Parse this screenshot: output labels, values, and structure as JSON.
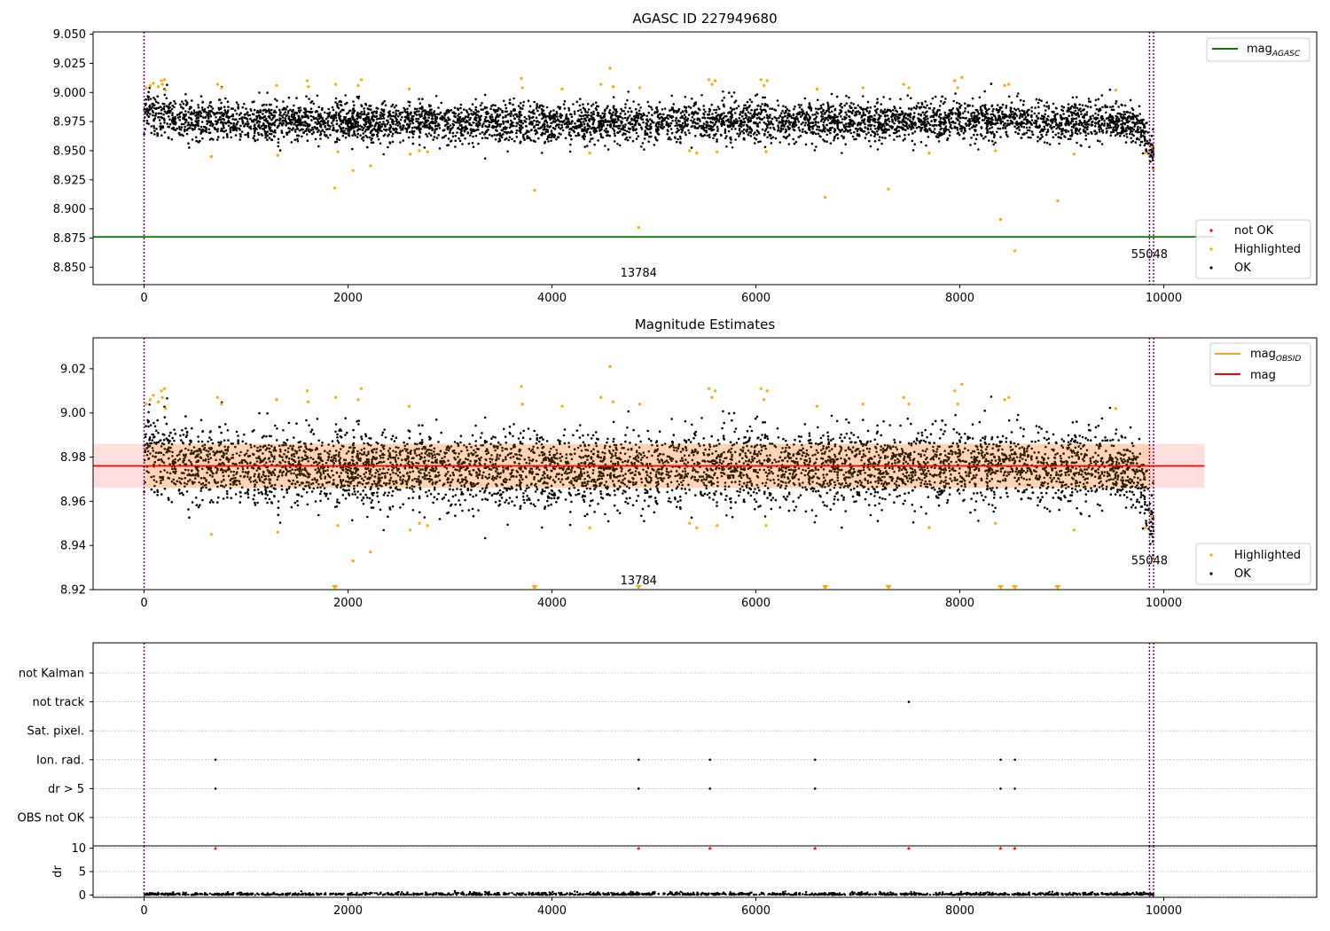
{
  "chart_data": [
    {
      "type": "scatter",
      "title": "AGASC ID 227949680",
      "xlim": [
        -500,
        11500
      ],
      "ylim": [
        8.835,
        9.052
      ],
      "xticks": [
        0,
        2000,
        4000,
        6000,
        8000,
        10000
      ],
      "yticks": [
        "8.850",
        "8.875",
        "8.900",
        "8.925",
        "8.950",
        "8.975",
        "9.000",
        "9.025",
        "9.050"
      ],
      "yticks_values": [
        8.85,
        8.875,
        8.9,
        8.925,
        8.95,
        8.975,
        9.0,
        9.025,
        9.05
      ],
      "vlines": [
        0,
        9860,
        9900
      ],
      "mag_agasc": 8.876,
      "mag_agasc_xrange": [
        -500,
        10500
      ],
      "annotations": [
        {
          "text": "13784",
          "x": 4850,
          "y": 8.842
        },
        {
          "text": "55048",
          "x": 9860,
          "y": 8.858
        }
      ],
      "legend_top": {
        "location": "top-right",
        "entries": [
          {
            "label": "mag",
            "sub": "AGASC",
            "color": "#008000"
          }
        ]
      },
      "legend_bottom": {
        "location": "bottom-right",
        "entries": [
          {
            "label": "not OK",
            "color": "#ff0000"
          },
          {
            "label": "Highlighted",
            "color": "#ffa500"
          },
          {
            "label": "OK",
            "color": "#000000"
          }
        ]
      },
      "ok_trend": [
        [
          0,
          8.985
        ],
        [
          300,
          8.978
        ],
        [
          1000,
          8.976
        ],
        [
          2000,
          8.975
        ],
        [
          4000,
          8.974
        ],
        [
          6000,
          8.975
        ],
        [
          8000,
          8.976
        ],
        [
          9500,
          8.975
        ],
        [
          9800,
          8.968
        ],
        [
          9900,
          8.95
        ]
      ],
      "ok_spread": 0.011,
      "highlighted_points": [
        [
          20,
          9.004
        ],
        [
          60,
          9.006
        ],
        [
          90,
          9.008
        ],
        [
          140,
          9.005
        ],
        [
          170,
          9.01
        ],
        [
          200,
          9.011
        ],
        [
          180,
          9.007
        ],
        [
          210,
          9.002
        ],
        [
          660,
          8.945
        ],
        [
          720,
          9.007
        ],
        [
          760,
          9.004
        ],
        [
          1300,
          9.006
        ],
        [
          1310,
          8.946
        ],
        [
          1600,
          9.01
        ],
        [
          1610,
          9.005
        ],
        [
          1870,
          8.918
        ],
        [
          1880,
          9.007
        ],
        [
          1900,
          8.949
        ],
        [
          2050,
          8.933
        ],
        [
          2100,
          9.006
        ],
        [
          2130,
          9.011
        ],
        [
          2220,
          8.937
        ],
        [
          2600,
          9.003
        ],
        [
          2610,
          8.947
        ],
        [
          2700,
          8.95
        ],
        [
          2780,
          8.949
        ],
        [
          3700,
          9.012
        ],
        [
          3710,
          9.004
        ],
        [
          3830,
          8.916
        ],
        [
          4100,
          9.003
        ],
        [
          4370,
          8.948
        ],
        [
          4480,
          9.007
        ],
        [
          4570,
          9.021
        ],
        [
          4600,
          9.005
        ],
        [
          4850,
          8.884
        ],
        [
          4860,
          9.004
        ],
        [
          5350,
          8.95
        ],
        [
          5420,
          8.948
        ],
        [
          5540,
          9.011
        ],
        [
          5570,
          9.007
        ],
        [
          5600,
          9.01
        ],
        [
          5620,
          8.949
        ],
        [
          6050,
          9.011
        ],
        [
          6080,
          9.006
        ],
        [
          6100,
          8.949
        ],
        [
          6110,
          9.01
        ],
        [
          6600,
          9.003
        ],
        [
          6680,
          8.91
        ],
        [
          7050,
          9.004
        ],
        [
          7300,
          8.917
        ],
        [
          7450,
          9.007
        ],
        [
          7500,
          9.004
        ],
        [
          7700,
          8.948
        ],
        [
          7950,
          9.01
        ],
        [
          7980,
          9.004
        ],
        [
          8020,
          9.013
        ],
        [
          8350,
          8.95
        ],
        [
          8400,
          8.891
        ],
        [
          8440,
          9.006
        ],
        [
          8480,
          9.007
        ],
        [
          8540,
          8.864
        ],
        [
          8960,
          8.907
        ],
        [
          9120,
          8.947
        ],
        [
          9530,
          9.002
        ],
        [
          9820,
          8.948
        ],
        [
          9880,
          8.953
        ],
        [
          9900,
          8.934
        ]
      ],
      "not_ok_points": [
        [
          10400,
          8.876
        ]
      ]
    },
    {
      "type": "scatter",
      "title": "Magnitude Estimates",
      "xlim": [
        -500,
        11500
      ],
      "ylim": [
        8.92,
        9.034
      ],
      "xticks": [
        0,
        2000,
        4000,
        6000,
        8000,
        10000
      ],
      "yticks": [
        "8.92",
        "8.94",
        "8.96",
        "8.98",
        "9.00",
        "9.02"
      ],
      "yticks_values": [
        8.92,
        8.94,
        8.96,
        8.98,
        9.0,
        9.02
      ],
      "vlines": [
        0,
        9860,
        9900
      ],
      "mag": 8.976,
      "mag_band": [
        8.966,
        8.986
      ],
      "mag_xrange": [
        -500,
        10400
      ],
      "mag_obsid_ranges": [
        [
          0,
          9900
        ]
      ],
      "annotations": [
        {
          "text": "13784",
          "x": 4850,
          "y": 8.9225
        },
        {
          "text": "55048",
          "x": 9860,
          "y": 8.9315
        }
      ],
      "legend_top": {
        "location": "top-right",
        "entries": [
          {
            "label": "mag",
            "sub": "OBSID",
            "color": "#ffa500"
          },
          {
            "label": "mag",
            "color": "#ff0000"
          }
        ]
      },
      "legend_bottom": {
        "location": "bottom-right",
        "entries": [
          {
            "label": "Highlighted",
            "color": "#ffa500"
          },
          {
            "label": "OK",
            "color": "#000000"
          }
        ]
      },
      "ok_trend": [
        [
          0,
          8.985
        ],
        [
          300,
          8.978
        ],
        [
          1000,
          8.976
        ],
        [
          2000,
          8.975
        ],
        [
          4000,
          8.974
        ],
        [
          6000,
          8.975
        ],
        [
          8000,
          8.976
        ],
        [
          9500,
          8.975
        ],
        [
          9800,
          8.968
        ],
        [
          9900,
          8.95
        ]
      ],
      "ok_spread": 0.011,
      "highlighted_points": [
        [
          20,
          9.004
        ],
        [
          60,
          9.006
        ],
        [
          90,
          9.008
        ],
        [
          140,
          9.005
        ],
        [
          170,
          9.01
        ],
        [
          200,
          9.011
        ],
        [
          180,
          9.007
        ],
        [
          210,
          9.002
        ],
        [
          660,
          8.945
        ],
        [
          720,
          9.007
        ],
        [
          760,
          9.004
        ],
        [
          1300,
          9.006
        ],
        [
          1310,
          8.946
        ],
        [
          1600,
          9.01
        ],
        [
          1610,
          9.005
        ],
        [
          1880,
          9.007
        ],
        [
          1900,
          8.949
        ],
        [
          2050,
          8.933
        ],
        [
          2100,
          9.006
        ],
        [
          2130,
          9.011
        ],
        [
          2220,
          8.937
        ],
        [
          2600,
          9.003
        ],
        [
          2610,
          8.947
        ],
        [
          2700,
          8.95
        ],
        [
          2780,
          8.949
        ],
        [
          3700,
          9.012
        ],
        [
          3710,
          9.004
        ],
        [
          4100,
          9.003
        ],
        [
          4370,
          8.948
        ],
        [
          4480,
          9.007
        ],
        [
          4570,
          9.021
        ],
        [
          4600,
          9.005
        ],
        [
          4860,
          9.004
        ],
        [
          5350,
          8.95
        ],
        [
          5420,
          8.948
        ],
        [
          5540,
          9.011
        ],
        [
          5570,
          9.007
        ],
        [
          5600,
          9.01
        ],
        [
          5620,
          8.949
        ],
        [
          6050,
          9.011
        ],
        [
          6080,
          9.006
        ],
        [
          6100,
          8.949
        ],
        [
          6110,
          9.01
        ],
        [
          6600,
          9.003
        ],
        [
          7050,
          9.004
        ],
        [
          7450,
          9.007
        ],
        [
          7500,
          9.004
        ],
        [
          7700,
          8.948
        ],
        [
          7950,
          9.01
        ],
        [
          7980,
          9.004
        ],
        [
          8020,
          9.013
        ],
        [
          8350,
          8.95
        ],
        [
          8440,
          9.006
        ],
        [
          8480,
          9.007
        ],
        [
          9120,
          8.947
        ],
        [
          9530,
          9.002
        ],
        [
          9820,
          8.948
        ],
        [
          9880,
          8.953
        ],
        [
          9900,
          8.934
        ]
      ],
      "below_range_markers": [
        1870,
        3830,
        4850,
        6680,
        7300,
        8400,
        8540,
        8960
      ]
    },
    {
      "type": "scatter",
      "xlim": [
        -500,
        11500
      ],
      "xticks": [
        0,
        2000,
        4000,
        6000,
        8000,
        10000
      ],
      "vlines": [
        0,
        9860,
        9900
      ],
      "flag_rows": [
        "not Kalman",
        "not track",
        "Sat. pixel.",
        "Ion. rad.",
        "dr > 5",
        "OBS not OK"
      ],
      "flag_points": {
        "not Kalman": [],
        "not track": [
          7500
        ],
        "Sat. pixel.": [],
        "Ion. rad.": [
          700,
          4850,
          5550,
          6580,
          8400,
          8540
        ],
        "dr > 5": [
          700,
          4850,
          5550,
          6580,
          8400,
          8540
        ],
        "OBS not OK": []
      },
      "dr_ylabel": "dr",
      "dr_ylim": [
        -0.5,
        10.5
      ],
      "dr_yticks": [
        0,
        5,
        10
      ],
      "dr_high_points": [
        700,
        4850,
        5550,
        6580,
        7500,
        8400,
        8540
      ],
      "dr_high_value": 10
    }
  ]
}
